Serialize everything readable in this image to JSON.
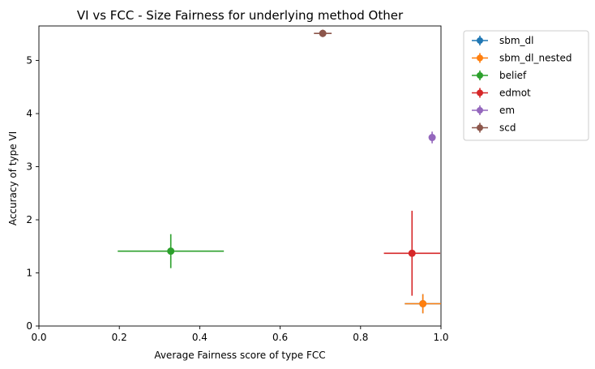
{
  "chart_data": {
    "type": "scatter",
    "title": "VI vs FCC - Size Fairness for underlying method Other",
    "xlabel": "Average Fairness score of type FCC",
    "ylabel": "Accuracy of type VI",
    "xlim": [
      0.0,
      1.0
    ],
    "ylim": [
      0.0,
      5.65
    ],
    "xticks": [
      0.0,
      0.2,
      0.4,
      0.6,
      0.8,
      1.0
    ],
    "xtick_labels": [
      "0.0",
      "0.2",
      "0.4",
      "0.6",
      "0.8",
      "1.0"
    ],
    "yticks": [
      0,
      1,
      2,
      3,
      4,
      5
    ],
    "ytick_labels": [
      "0",
      "1",
      "2",
      "3",
      "4",
      "5"
    ],
    "grid": false,
    "legend_position": "outside-top-right",
    "series": [
      {
        "name": "sbm_dl",
        "color": "#1f77b4",
        "x": 0.955,
        "y": 0.42,
        "xerr": 0.045,
        "yerr": 0.18
      },
      {
        "name": "sbm_dl_nested",
        "color": "#ff7f0e",
        "x": 0.955,
        "y": 0.42,
        "xerr": 0.045,
        "yerr": 0.18
      },
      {
        "name": "belief",
        "color": "#2ca02c",
        "x": 0.328,
        "y": 1.41,
        "xerr": 0.132,
        "yerr": 0.32
      },
      {
        "name": "edmot",
        "color": "#d62728",
        "x": 0.928,
        "y": 1.37,
        "xerr": 0.07,
        "yerr": 0.8
      },
      {
        "name": "em",
        "color": "#9467bd",
        "x": 0.978,
        "y": 3.55,
        "xerr": 0.0,
        "yerr": 0.11
      },
      {
        "name": "scd",
        "color": "#8c564b",
        "x": 0.706,
        "y": 5.51,
        "xerr": 0.022,
        "yerr": 0.07
      }
    ]
  }
}
